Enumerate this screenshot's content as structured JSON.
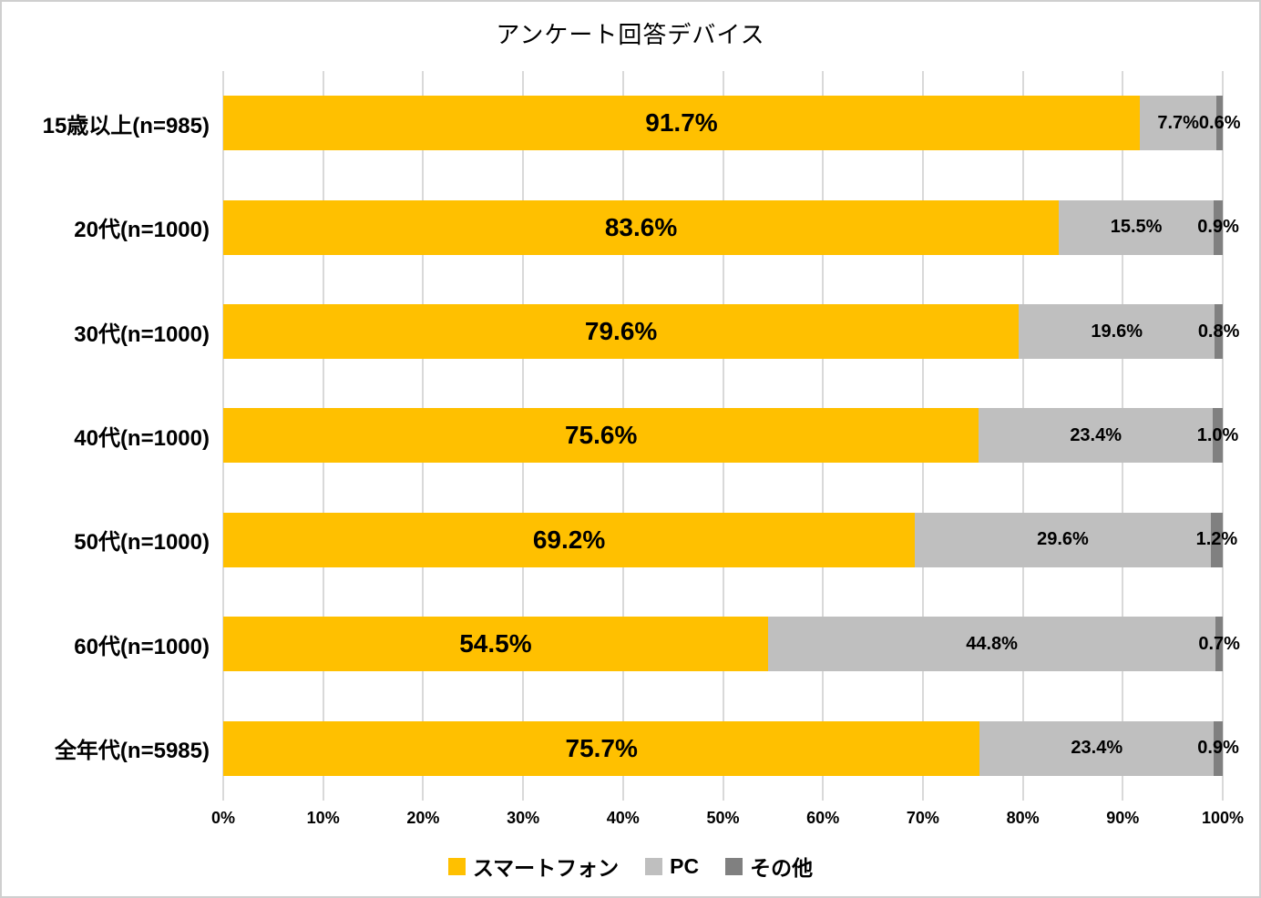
{
  "chart_data": {
    "type": "bar",
    "orientation": "horizontal",
    "stacked": true,
    "title": "アンケート回答デバイス",
    "categories": [
      "15歳以上(n=985)",
      "20代(n=1000)",
      "30代(n=1000)",
      "40代(n=1000)",
      "50代(n=1000)",
      "60代(n=1000)",
      "全年代(n=5985)"
    ],
    "series": [
      {
        "name": "スマートフォン",
        "color": "#FFC000",
        "values": [
          91.7,
          83.6,
          79.6,
          75.6,
          69.2,
          54.5,
          75.7
        ],
        "labels": [
          "91.7%",
          "83.6%",
          "79.6%",
          "75.6%",
          "69.2%",
          "54.5%",
          "75.7%"
        ]
      },
      {
        "name": "PC",
        "color": "#BFBFBF",
        "values": [
          7.7,
          15.5,
          19.6,
          23.4,
          29.6,
          44.8,
          23.4
        ],
        "labels": [
          "7.7%",
          "15.5%",
          "19.6%",
          "23.4%",
          "29.6%",
          "44.8%",
          "23.4%"
        ]
      },
      {
        "name": "その他",
        "color": "#808080",
        "values": [
          0.6,
          0.9,
          0.8,
          1.0,
          1.2,
          0.7,
          0.9
        ],
        "labels": [
          "0.6%",
          "0.9%",
          "0.8%",
          "1.0%",
          "1.2%",
          "0.7%",
          "0.9%"
        ]
      }
    ],
    "x_axis": {
      "min": 0,
      "max": 100,
      "tick_labels": [
        "0%",
        "10%",
        "20%",
        "30%",
        "40%",
        "50%",
        "60%",
        "70%",
        "80%",
        "90%",
        "100%"
      ],
      "grid": true,
      "gridline_color": "#D9D9D9"
    },
    "legend": {
      "position": "bottom",
      "entries": [
        "スマートフォン",
        "PC",
        "その他"
      ]
    },
    "text_color": "#000000",
    "background_color": "#FFFFFF"
  }
}
